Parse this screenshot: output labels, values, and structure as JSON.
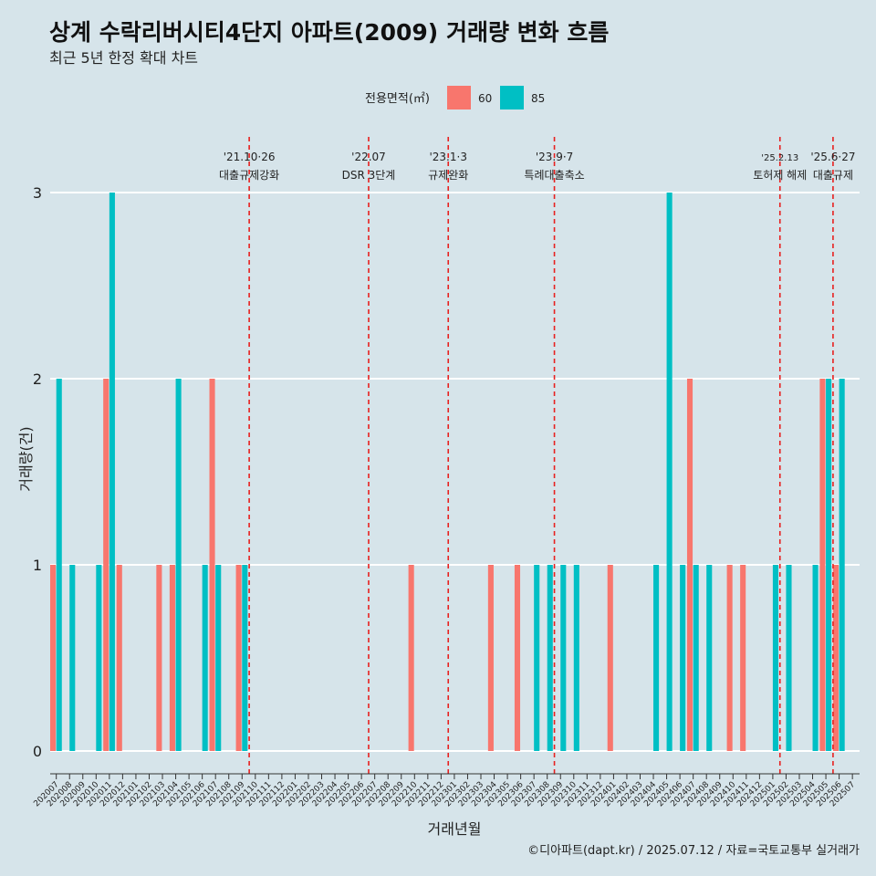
{
  "chart_data": {
    "type": "bar",
    "title": "상계 수락리버시티4단지 아파트(2009) 거래량 변화 흐름",
    "subtitle": "최근 5년 한정 확대 차트",
    "xlabel": "거래년월",
    "ylabel": "거래량(건)",
    "ylim": [
      0,
      3
    ],
    "yticks": [
      0,
      1,
      2,
      3
    ],
    "grid": true,
    "legend": {
      "title": "전용면적(㎡)",
      "placement": "top",
      "items": [
        {
          "label": "60",
          "color": "#f8766d"
        },
        {
          "label": "85",
          "color": "#00bfc4"
        }
      ]
    },
    "categories": [
      "202007",
      "202008",
      "202009",
      "202010",
      "202011",
      "202012",
      "202101",
      "202102",
      "202103",
      "202104",
      "202105",
      "202106",
      "202107",
      "202108",
      "202109",
      "202110",
      "202111",
      "202112",
      "202201",
      "202202",
      "202203",
      "202204",
      "202205",
      "202206",
      "202207",
      "202208",
      "202209",
      "202210",
      "202211",
      "202212",
      "202301",
      "202302",
      "202303",
      "202304",
      "202305",
      "202306",
      "202307",
      "202308",
      "202309",
      "202310",
      "202311",
      "202312",
      "202401",
      "202402",
      "202403",
      "202404",
      "202405",
      "202406",
      "202407",
      "202408",
      "202409",
      "202410",
      "202411",
      "202412",
      "202501",
      "202502",
      "202503",
      "202504",
      "202505",
      "202506",
      "202507"
    ],
    "series": [
      {
        "name": "60",
        "color": "#f8766d",
        "values": [
          1,
          0,
          0,
          0,
          2,
          1,
          0,
          0,
          1,
          1,
          0,
          0,
          2,
          0,
          1,
          0,
          0,
          0,
          0,
          0,
          0,
          0,
          0,
          0,
          0,
          0,
          0,
          1,
          0,
          0,
          0,
          0,
          0,
          1,
          0,
          1,
          0,
          0,
          0,
          0,
          0,
          0,
          1,
          0,
          0,
          0,
          0,
          0,
          2,
          0,
          0,
          1,
          1,
          0,
          0,
          0,
          0,
          0,
          2,
          1,
          0
        ]
      },
      {
        "name": "85",
        "color": "#00bfc4",
        "values": [
          2,
          1,
          0,
          1,
          3,
          0,
          0,
          0,
          0,
          2,
          0,
          1,
          1,
          0,
          1,
          0,
          0,
          0,
          0,
          0,
          0,
          0,
          0,
          0,
          0,
          0,
          0,
          0,
          0,
          0,
          0,
          0,
          0,
          0,
          0,
          0,
          1,
          1,
          1,
          1,
          0,
          0,
          0,
          0,
          0,
          1,
          3,
          1,
          1,
          1,
          0,
          0,
          0,
          0,
          1,
          1,
          0,
          1,
          2,
          2,
          0
        ]
      }
    ],
    "annotations": [
      {
        "date_label": "'21.10·26",
        "text": "대출규제강화",
        "month": "202110"
      },
      {
        "date_label": "'22.07",
        "text": "DSR 3단계",
        "month": "202207"
      },
      {
        "date_label": "'23.1·3",
        "text": "규제완화",
        "month": "202301"
      },
      {
        "date_label": "'23.9·7",
        "text": "특례대출축소",
        "month": "202309"
      },
      {
        "date_label": "'25.2.13",
        "text": "토허제 해제",
        "month": "202502"
      },
      {
        "date_label": "'25.6·27",
        "text": "대출규제",
        "month": "202506"
      }
    ]
  },
  "caption": "©디아파트(dapt.kr) / 2025.07.12 / 자료=국토교통부 실거래가"
}
